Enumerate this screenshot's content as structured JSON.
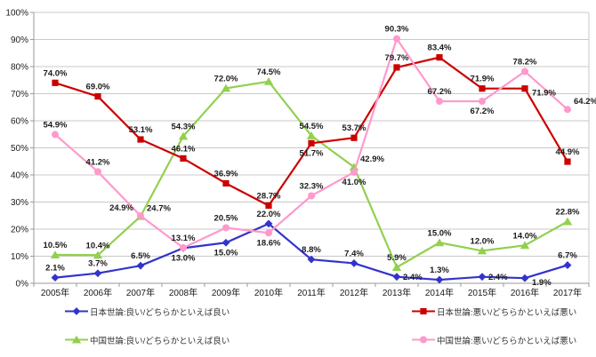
{
  "chart_data": {
    "type": "line",
    "title": "",
    "categories": [
      "2005年",
      "2006年",
      "2007年",
      "2008年",
      "2009年",
      "2010年",
      "2011年",
      "2012年",
      "2013年",
      "2014年",
      "2015年",
      "2016年",
      "2017年"
    ],
    "y_axis": {
      "min": 0,
      "max": 100,
      "step": 10,
      "tick_labels": [
        "0%",
        "10%",
        "20%",
        "30%",
        "40%",
        "50%",
        "60%",
        "70%",
        "80%",
        "90%",
        "100%"
      ]
    },
    "grid": true,
    "legend_position": "bottom",
    "value_suffix": "%",
    "series": [
      {
        "id": "japan-good",
        "name": "日本世論:良い/どちらかといえば良い",
        "color": "#3333CC",
        "marker": "diamond",
        "values": [
          2.1,
          3.7,
          6.5,
          13.0,
          15.0,
          22.0,
          8.8,
          7.4,
          2.4,
          1.3,
          2.4,
          1.9,
          6.7
        ],
        "label_pos": [
          "a",
          "a",
          "a",
          "b",
          "b",
          "a",
          "a",
          "a",
          "r",
          "a",
          "r",
          "rb",
          "a"
        ]
      },
      {
        "id": "china-good",
        "name": "中国世論:良い/どちらかといえば良い",
        "color": "#92D050",
        "marker": "triangle",
        "values": [
          10.5,
          10.4,
          24.7,
          54.3,
          72.0,
          74.5,
          54.5,
          42.9,
          5.9,
          15.0,
          12.0,
          14.0,
          22.8
        ],
        "label_pos": [
          "a",
          "a",
          "ar",
          "a",
          "a",
          "a",
          "a",
          "ar",
          "a",
          "a",
          "a",
          "a",
          "a"
        ]
      },
      {
        "id": "japan-bad",
        "name": "日本世論:悪い/どちらかといえば悪い",
        "color": "#CC0000",
        "marker": "square",
        "values": [
          74.0,
          69.0,
          53.1,
          46.1,
          36.9,
          28.7,
          51.7,
          53.7,
          79.7,
          83.4,
          71.9,
          71.9,
          44.9
        ],
        "label_pos": [
          "a",
          "a",
          "a",
          "a",
          "a",
          "a",
          "b",
          "a",
          "a",
          "a",
          "a",
          "rb",
          "a"
        ]
      },
      {
        "id": "china-bad",
        "name": "中国世論:悪い/どちらかといえば悪い",
        "color": "#FF99CC",
        "marker": "circle",
        "values": [
          54.9,
          41.2,
          24.9,
          13.1,
          20.5,
          18.6,
          32.3,
          41.0,
          90.3,
          67.2,
          67.2,
          78.2,
          64.2
        ],
        "label_pos": [
          "a",
          "a",
          "al",
          "a",
          "a",
          "b",
          "a",
          "b",
          "a",
          "a",
          "b",
          "a",
          "ar"
        ]
      }
    ],
    "legend_rows": [
      [
        0,
        2
      ],
      [
        1,
        3
      ]
    ]
  },
  "colors": {
    "grid": "#C9C9C9",
    "axis": "#999999",
    "tick_text": "#1A1A1A",
    "data_label": "#1A1A1A"
  }
}
